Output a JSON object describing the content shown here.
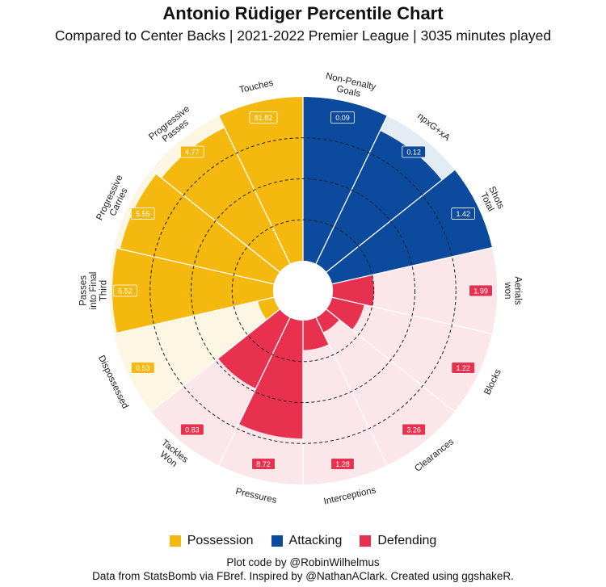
{
  "chart_data": {
    "type": "polar-bar",
    "title": "Antonio Rüdiger Percentile Chart",
    "subtitle": "Compared to Center Backs  | 2021-2022 Premier League  | 3035 minutes played",
    "categories": [
      "Non-Penalty Goals",
      "npxG+xA",
      "Shots Total",
      "Aerials won",
      "Blocks",
      "Clearances",
      "Interceptions",
      "Pressures",
      "Tackles Won",
      "Dispossessed",
      "Passes into Final Third",
      "Progressive Carries",
      "Progressive Passes",
      "Touches"
    ],
    "label_lines": [
      [
        "Non-Penalty",
        "Goals"
      ],
      [
        "npxG+xA"
      ],
      [
        "Shots",
        "Total"
      ],
      [
        "Aerials",
        "won"
      ],
      [
        "Blocks"
      ],
      [
        "Clearances"
      ],
      [
        "Interceptions"
      ],
      [
        "Pressures"
      ],
      [
        "Tackles",
        "Won"
      ],
      [
        "Dispossessed"
      ],
      [
        "Passes",
        "into Final",
        "Third"
      ],
      [
        "Progressive",
        "Carries"
      ],
      [
        "Progressive",
        "Passes"
      ],
      [
        "Touches"
      ]
    ],
    "groups": [
      "Attacking",
      "Attacking",
      "Attacking",
      "Defending",
      "Defending",
      "Defending",
      "Defending",
      "Defending",
      "Defending",
      "Possession",
      "Possession",
      "Possession",
      "Possession",
      "Possession"
    ],
    "percentiles": [
      100,
      90,
      100,
      25,
      20,
      10,
      18,
      72,
      48,
      10,
      98,
      96,
      92,
      100
    ],
    "values_per90": [
      "0.09",
      "0.12",
      "1.42",
      "1.99",
      "1.22",
      "3.26",
      "1.28",
      "8.72",
      "0.83",
      "0.53",
      "6.52",
      "5.55",
      "4.77",
      "81.82"
    ],
    "gridlines": [
      25,
      50,
      75
    ],
    "ylim": [
      0,
      100
    ],
    "legend": [
      {
        "name": "Possession",
        "color": "#F5B80F"
      },
      {
        "name": "Attacking",
        "color": "#0B4A9C"
      },
      {
        "name": "Defending",
        "color": "#E8304F"
      }
    ]
  },
  "colors": {
    "Possession": "#F5B80F",
    "Attacking": "#0B4A9C",
    "Defending": "#E8304F",
    "bg_Possession": "#FDF6E3",
    "bg_Attacking": "#E3ECF3",
    "bg_Defending": "#FBE6E9"
  },
  "caption": {
    "line1": "Plot code by @RobinWilhelmus",
    "line2": "Data from StatsBomb via FBref. Inspired by @NathanAClark. Created using ggshakeR."
  }
}
